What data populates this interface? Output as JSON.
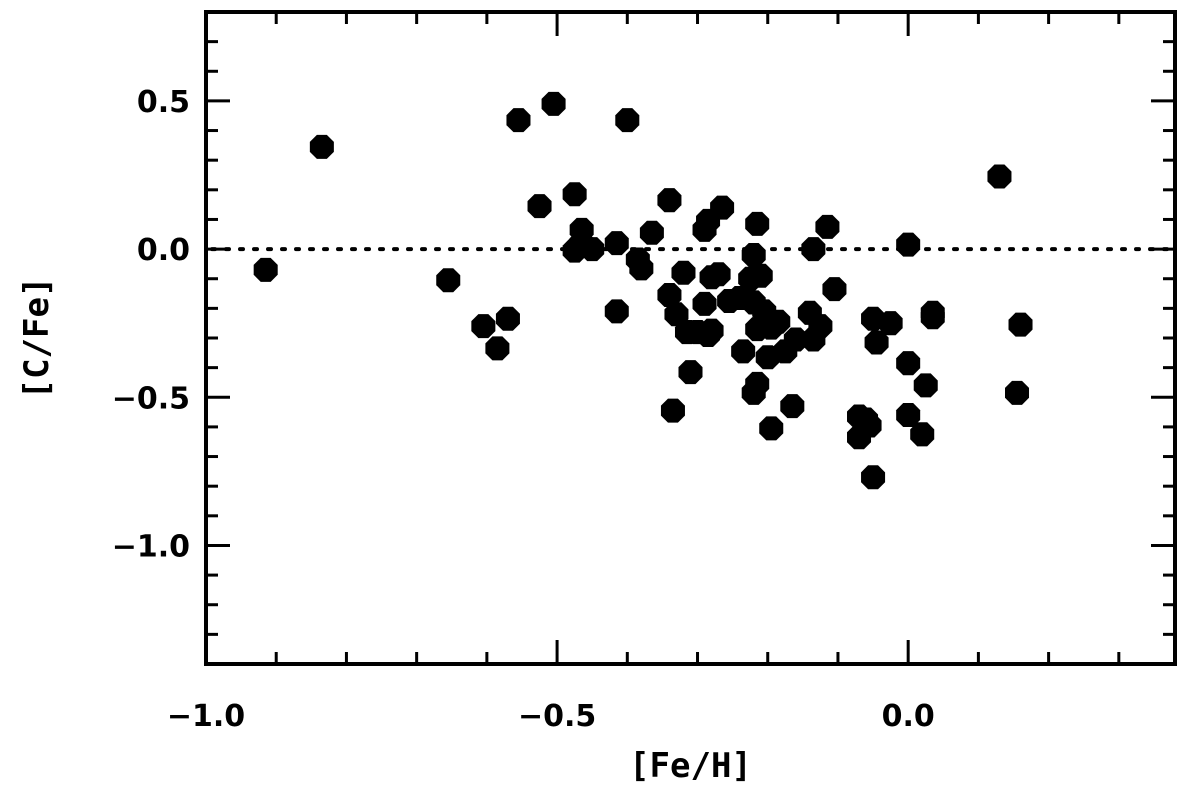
{
  "chart_data": {
    "type": "scatter",
    "xlabel": "[Fe/H]",
    "ylabel": "[C/Fe]",
    "xlim": [
      -1.0,
      0.38
    ],
    "ylim": [
      -1.4,
      0.8
    ],
    "x_ticks": [
      {
        "value": -1.0,
        "label": "−1.0"
      },
      {
        "value": -0.5,
        "label": "−0.5"
      },
      {
        "value": 0.0,
        "label": "0.0"
      }
    ],
    "y_ticks": [
      {
        "value": 0.5,
        "label": "0.5"
      },
      {
        "value": 0.0,
        "label": "0.0"
      },
      {
        "value": -0.5,
        "label": "−0.5"
      },
      {
        "value": -1.0,
        "label": "−1.0"
      }
    ],
    "x_minor_step": 0.1,
    "y_minor_step": 0.1,
    "reference_line": {
      "y": 0.0,
      "style": "dotted"
    },
    "marker": {
      "shape": "octagon",
      "color": "#000000"
    },
    "points": [
      {
        "x": -0.915,
        "y": -0.07
      },
      {
        "x": -0.835,
        "y": 0.345
      },
      {
        "x": -0.655,
        "y": -0.105
      },
      {
        "x": -0.605,
        "y": -0.26
      },
      {
        "x": -0.585,
        "y": -0.335
      },
      {
        "x": -0.57,
        "y": -0.235
      },
      {
        "x": -0.555,
        "y": 0.435
      },
      {
        "x": -0.525,
        "y": 0.145
      },
      {
        "x": -0.505,
        "y": 0.49
      },
      {
        "x": -0.475,
        "y": 0.185
      },
      {
        "x": -0.475,
        "y": -0.005
      },
      {
        "x": -0.465,
        "y": 0.065
      },
      {
        "x": -0.465,
        "y": 0.02
      },
      {
        "x": -0.45,
        "y": 0.0
      },
      {
        "x": -0.415,
        "y": 0.02
      },
      {
        "x": -0.415,
        "y": -0.21
      },
      {
        "x": -0.4,
        "y": 0.435
      },
      {
        "x": -0.385,
        "y": -0.035
      },
      {
        "x": -0.38,
        "y": -0.065
      },
      {
        "x": -0.365,
        "y": 0.055
      },
      {
        "x": -0.34,
        "y": 0.165
      },
      {
        "x": -0.34,
        "y": -0.155
      },
      {
        "x": -0.335,
        "y": -0.545
      },
      {
        "x": -0.33,
        "y": -0.22
      },
      {
        "x": -0.32,
        "y": -0.08
      },
      {
        "x": -0.315,
        "y": -0.28
      },
      {
        "x": -0.31,
        "y": -0.415
      },
      {
        "x": -0.3,
        "y": -0.28
      },
      {
        "x": -0.29,
        "y": 0.065
      },
      {
        "x": -0.29,
        "y": -0.185
      },
      {
        "x": -0.285,
        "y": 0.095
      },
      {
        "x": -0.285,
        "y": -0.29
      },
      {
        "x": -0.28,
        "y": -0.275
      },
      {
        "x": -0.28,
        "y": -0.095
      },
      {
        "x": -0.27,
        "y": -0.085
      },
      {
        "x": -0.265,
        "y": 0.14
      },
      {
        "x": -0.255,
        "y": -0.175
      },
      {
        "x": -0.24,
        "y": -0.165
      },
      {
        "x": -0.235,
        "y": -0.345
      },
      {
        "x": -0.225,
        "y": -0.1
      },
      {
        "x": -0.22,
        "y": -0.02
      },
      {
        "x": -0.22,
        "y": -0.18
      },
      {
        "x": -0.22,
        "y": -0.485
      },
      {
        "x": -0.215,
        "y": 0.085
      },
      {
        "x": -0.215,
        "y": -0.455
      },
      {
        "x": -0.215,
        "y": -0.27
      },
      {
        "x": -0.21,
        "y": -0.09
      },
      {
        "x": -0.205,
        "y": -0.21
      },
      {
        "x": -0.2,
        "y": -0.365
      },
      {
        "x": -0.195,
        "y": -0.605
      },
      {
        "x": -0.195,
        "y": -0.265
      },
      {
        "x": -0.185,
        "y": -0.245
      },
      {
        "x": -0.175,
        "y": -0.345
      },
      {
        "x": -0.165,
        "y": -0.53
      },
      {
        "x": -0.16,
        "y": -0.305
      },
      {
        "x": -0.14,
        "y": -0.215
      },
      {
        "x": -0.135,
        "y": 0.0
      },
      {
        "x": -0.135,
        "y": -0.305
      },
      {
        "x": -0.125,
        "y": -0.26
      },
      {
        "x": -0.115,
        "y": 0.075
      },
      {
        "x": -0.105,
        "y": -0.135
      },
      {
        "x": -0.07,
        "y": -0.565
      },
      {
        "x": -0.07,
        "y": -0.635
      },
      {
        "x": -0.06,
        "y": -0.575
      },
      {
        "x": -0.055,
        "y": -0.595
      },
      {
        "x": -0.05,
        "y": -0.77
      },
      {
        "x": -0.05,
        "y": -0.235
      },
      {
        "x": -0.045,
        "y": -0.315
      },
      {
        "x": -0.025,
        "y": -0.25
      },
      {
        "x": 0.0,
        "y": 0.015
      },
      {
        "x": 0.0,
        "y": -0.385
      },
      {
        "x": 0.0,
        "y": -0.56
      },
      {
        "x": 0.02,
        "y": -0.625
      },
      {
        "x": 0.025,
        "y": -0.46
      },
      {
        "x": 0.035,
        "y": -0.215
      },
      {
        "x": 0.035,
        "y": -0.23
      },
      {
        "x": 0.13,
        "y": 0.245
      },
      {
        "x": 0.155,
        "y": -0.485
      },
      {
        "x": 0.16,
        "y": -0.255
      }
    ]
  }
}
